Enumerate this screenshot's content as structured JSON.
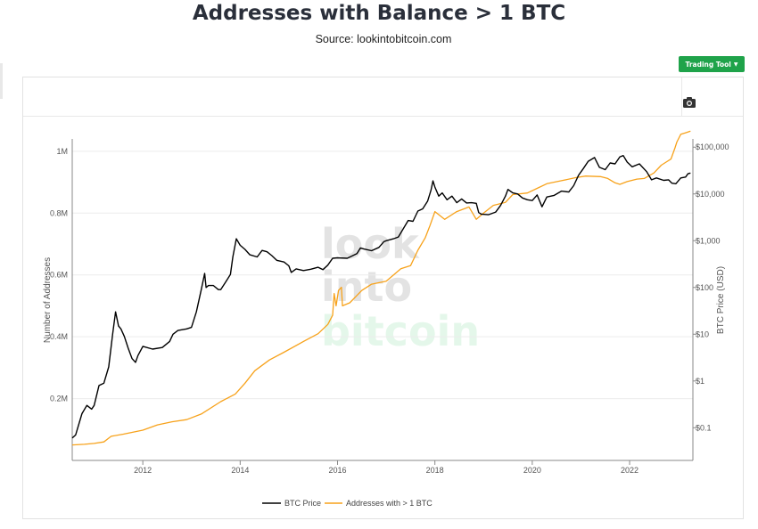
{
  "header": {
    "title": "Addresses with Balance > 1 BTC",
    "subtitle": "Source: lookintobitcoin.com",
    "trading_tool_label": "Trading Tool"
  },
  "watermark": {
    "line1": "look",
    "line2": "into",
    "line3": "bitcoin"
  },
  "icons": {
    "camera": "camera-icon",
    "caret": "chevron-down-icon"
  },
  "colors": {
    "btc_price": "#000000",
    "addresses": "#f7a21b",
    "trading_tool": "#1fa34a"
  },
  "chart_data": {
    "type": "line",
    "title": "Addresses with Balance > 1 BTC",
    "subtitle": "Source: lookintobitcoin.com",
    "xlabel": "",
    "ylabel_left": "Number of Addresses",
    "ylabel_right": "BTC Price (USD)",
    "x_ticks": [
      "2012",
      "2014",
      "2016",
      "2018",
      "2020",
      "2022"
    ],
    "x_range": [
      2010.55,
      2023.3
    ],
    "y_left_ticks": [
      "0.2M",
      "0.4M",
      "0.6M",
      "0.8M",
      "1M"
    ],
    "y_left_tick_values": [
      200000,
      400000,
      600000,
      800000,
      1000000
    ],
    "y_left_range": [
      0,
      1040000
    ],
    "y_right_scale": "log",
    "y_right_ticks": [
      "$0.1",
      "$1",
      "$10",
      "$100",
      "$1,000",
      "$10,000",
      "$100,000"
    ],
    "y_right_tick_values": [
      0.1,
      1,
      10,
      100,
      1000,
      10000,
      100000
    ],
    "y_right_range": [
      0.02,
      150000
    ],
    "grid": true,
    "legend_position": "bottom-center",
    "series": [
      {
        "name": "BTC Price",
        "axis": "right",
        "points": [
          [
            2010.55,
            0.06
          ],
          [
            2010.62,
            0.07
          ],
          [
            2010.75,
            0.2
          ],
          [
            2010.85,
            0.3
          ],
          [
            2010.95,
            0.25
          ],
          [
            2011.0,
            0.3
          ],
          [
            2011.1,
            0.8
          ],
          [
            2011.2,
            0.9
          ],
          [
            2011.3,
            2
          ],
          [
            2011.38,
            10
          ],
          [
            2011.44,
            30
          ],
          [
            2011.5,
            15
          ],
          [
            2011.55,
            13
          ],
          [
            2011.62,
            9
          ],
          [
            2011.7,
            5
          ],
          [
            2011.78,
            3
          ],
          [
            2011.85,
            2.5
          ],
          [
            2011.9,
            3.5
          ],
          [
            2012.0,
            5.5
          ],
          [
            2012.2,
            4.8
          ],
          [
            2012.4,
            5.2
          ],
          [
            2012.55,
            7
          ],
          [
            2012.62,
            10
          ],
          [
            2012.72,
            12
          ],
          [
            2012.9,
            13
          ],
          [
            2013.0,
            14
          ],
          [
            2013.1,
            30
          ],
          [
            2013.2,
            90
          ],
          [
            2013.27,
            200
          ],
          [
            2013.3,
            100
          ],
          [
            2013.35,
            110
          ],
          [
            2013.45,
            110
          ],
          [
            2013.55,
            90
          ],
          [
            2013.6,
            90
          ],
          [
            2013.7,
            130
          ],
          [
            2013.8,
            190
          ],
          [
            2013.85,
            450
          ],
          [
            2013.92,
            1100
          ],
          [
            2014.0,
            800
          ],
          [
            2014.1,
            650
          ],
          [
            2014.2,
            500
          ],
          [
            2014.35,
            450
          ],
          [
            2014.45,
            620
          ],
          [
            2014.55,
            580
          ],
          [
            2014.65,
            480
          ],
          [
            2014.75,
            380
          ],
          [
            2014.9,
            350
          ],
          [
            2015.0,
            290
          ],
          [
            2015.05,
            210
          ],
          [
            2015.15,
            250
          ],
          [
            2015.3,
            230
          ],
          [
            2015.45,
            245
          ],
          [
            2015.6,
            270
          ],
          [
            2015.7,
            240
          ],
          [
            2015.8,
            300
          ],
          [
            2015.9,
            420
          ],
          [
            2016.0,
            430
          ],
          [
            2016.2,
            420
          ],
          [
            2016.4,
            530
          ],
          [
            2016.47,
            700
          ],
          [
            2016.55,
            660
          ],
          [
            2016.7,
            610
          ],
          [
            2016.85,
            720
          ],
          [
            2016.95,
            950
          ],
          [
            2017.0,
            1000
          ],
          [
            2017.15,
            1100
          ],
          [
            2017.25,
            1200
          ],
          [
            2017.35,
            1800
          ],
          [
            2017.45,
            2700
          ],
          [
            2017.55,
            2600
          ],
          [
            2017.65,
            4300
          ],
          [
            2017.75,
            4800
          ],
          [
            2017.85,
            7000
          ],
          [
            2017.92,
            12000
          ],
          [
            2017.96,
            19000
          ],
          [
            2018.0,
            14000
          ],
          [
            2018.08,
            9000
          ],
          [
            2018.15,
            10500
          ],
          [
            2018.25,
            7500
          ],
          [
            2018.35,
            9000
          ],
          [
            2018.45,
            6500
          ],
          [
            2018.55,
            7800
          ],
          [
            2018.65,
            6400
          ],
          [
            2018.75,
            6500
          ],
          [
            2018.85,
            6300
          ],
          [
            2018.9,
            4000
          ],
          [
            2018.95,
            3700
          ],
          [
            2019.1,
            3600
          ],
          [
            2019.25,
            4100
          ],
          [
            2019.35,
            5700
          ],
          [
            2019.45,
            9000
          ],
          [
            2019.5,
            12500
          ],
          [
            2019.6,
            10500
          ],
          [
            2019.7,
            10000
          ],
          [
            2019.8,
            8200
          ],
          [
            2019.9,
            7500
          ],
          [
            2020.0,
            7200
          ],
          [
            2020.1,
            9500
          ],
          [
            2020.2,
            5300
          ],
          [
            2020.3,
            8600
          ],
          [
            2020.45,
            9300
          ],
          [
            2020.6,
            11500
          ],
          [
            2020.75,
            11000
          ],
          [
            2020.85,
            15000
          ],
          [
            2020.95,
            25000
          ],
          [
            2021.05,
            35000
          ],
          [
            2021.15,
            50000
          ],
          [
            2021.28,
            60000
          ],
          [
            2021.38,
            37000
          ],
          [
            2021.5,
            33000
          ],
          [
            2021.6,
            46000
          ],
          [
            2021.7,
            44000
          ],
          [
            2021.8,
            62000
          ],
          [
            2021.87,
            66000
          ],
          [
            2021.95,
            48000
          ],
          [
            2022.05,
            38000
          ],
          [
            2022.2,
            44000
          ],
          [
            2022.35,
            30000
          ],
          [
            2022.45,
            20000
          ],
          [
            2022.55,
            22000
          ],
          [
            2022.7,
            19500
          ],
          [
            2022.8,
            20000
          ],
          [
            2022.87,
            17000
          ],
          [
            2022.95,
            16500
          ],
          [
            2023.05,
            22000
          ],
          [
            2023.15,
            23000
          ],
          [
            2023.2,
            27000
          ],
          [
            2023.25,
            28000
          ]
        ]
      },
      {
        "name": "Addresses with > 1 BTC",
        "axis": "left",
        "points": [
          [
            2010.55,
            50000
          ],
          [
            2010.8,
            52000
          ],
          [
            2011.0,
            55000
          ],
          [
            2011.2,
            60000
          ],
          [
            2011.3,
            72000
          ],
          [
            2011.35,
            78000
          ],
          [
            2011.6,
            85000
          ],
          [
            2012.0,
            98000
          ],
          [
            2012.3,
            115000
          ],
          [
            2012.6,
            125000
          ],
          [
            2012.9,
            132000
          ],
          [
            2013.2,
            150000
          ],
          [
            2013.6,
            190000
          ],
          [
            2013.9,
            215000
          ],
          [
            2014.1,
            250000
          ],
          [
            2014.3,
            290000
          ],
          [
            2014.6,
            325000
          ],
          [
            2014.9,
            350000
          ],
          [
            2015.3,
            385000
          ],
          [
            2015.6,
            410000
          ],
          [
            2015.8,
            440000
          ],
          [
            2015.9,
            470000
          ],
          [
            2015.93,
            540000
          ],
          [
            2015.97,
            500000
          ],
          [
            2016.02,
            550000
          ],
          [
            2016.08,
            560000
          ],
          [
            2016.1,
            500000
          ],
          [
            2016.25,
            510000
          ],
          [
            2016.5,
            550000
          ],
          [
            2016.7,
            570000
          ],
          [
            2017.0,
            580000
          ],
          [
            2017.3,
            620000
          ],
          [
            2017.5,
            630000
          ],
          [
            2017.65,
            680000
          ],
          [
            2017.8,
            720000
          ],
          [
            2017.9,
            760000
          ],
          [
            2018.0,
            805000
          ],
          [
            2018.2,
            780000
          ],
          [
            2018.45,
            805000
          ],
          [
            2018.7,
            820000
          ],
          [
            2018.85,
            780000
          ],
          [
            2019.0,
            800000
          ],
          [
            2019.2,
            825000
          ],
          [
            2019.45,
            835000
          ],
          [
            2019.6,
            860000
          ],
          [
            2019.9,
            865000
          ],
          [
            2020.1,
            880000
          ],
          [
            2020.3,
            895000
          ],
          [
            2020.6,
            905000
          ],
          [
            2020.9,
            915000
          ],
          [
            2021.1,
            920000
          ],
          [
            2021.4,
            918000
          ],
          [
            2021.55,
            912000
          ],
          [
            2021.7,
            898000
          ],
          [
            2021.8,
            893000
          ],
          [
            2021.95,
            902000
          ],
          [
            2022.15,
            910000
          ],
          [
            2022.3,
            912000
          ],
          [
            2022.5,
            930000
          ],
          [
            2022.65,
            955000
          ],
          [
            2022.75,
            965000
          ],
          [
            2022.85,
            975000
          ],
          [
            2022.93,
            1010000
          ],
          [
            2022.97,
            1030000
          ],
          [
            2023.05,
            1055000
          ],
          [
            2023.15,
            1060000
          ],
          [
            2023.25,
            1065000
          ]
        ]
      }
    ]
  }
}
